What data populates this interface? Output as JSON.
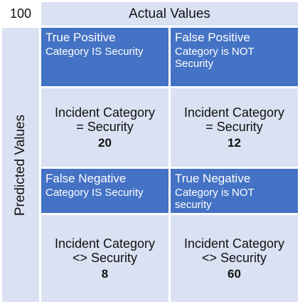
{
  "total": "100",
  "actual_header": "Actual Values",
  "predicted_header": "Predicted Values",
  "cells": {
    "true_positive": {
      "title": "True Positive",
      "subtitle": "Category IS Security",
      "value_line1": "Incident Category",
      "value_line2": "= Security",
      "count": "20"
    },
    "false_positive": {
      "title": "False Positive",
      "subtitle": "Category is NOT Security",
      "value_line1": "Incident Category",
      "value_line2": "= Security",
      "count": "12"
    },
    "false_negative": {
      "title": "False Negative",
      "subtitle": "Category IS Security",
      "value_line1": "Incident Category",
      "value_line2": "<> Security",
      "count": "8"
    },
    "true_negative": {
      "title": "True Negative",
      "subtitle": "Category is NOT security",
      "value_line1": "Incident Category",
      "value_line2": "<> Security",
      "count": "60"
    }
  },
  "colors": {
    "header_fill": "#4472c4",
    "light_fill": "#d9e1f2"
  }
}
